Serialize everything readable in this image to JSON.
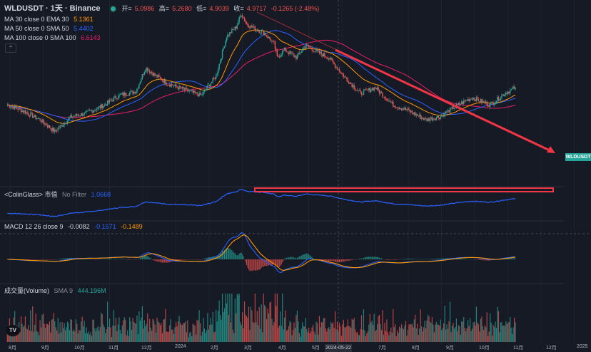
{
  "header": {
    "symbol": "WLDUSDT · 1天 · Binance",
    "open_label": "开=",
    "open": "5.0986",
    "high_label": "高=",
    "high": "5.2680",
    "low_label": "低=",
    "low": "4.9039",
    "close_label": "收=",
    "close": "4.9717",
    "change": "-0.1265 (-2.48%)"
  },
  "indicators": {
    "ma30": {
      "label": "MA 30 close 0 EMA 30",
      "value": "5.1361",
      "color": "#ff9800"
    },
    "ma50": {
      "label": "MA 50 close 0 SMA 50",
      "value": "5.4402",
      "color": "#2962ff"
    },
    "ma100": {
      "label": "MA 100 close 0 SMA 100",
      "value": "6.6143",
      "color": "#e91e63"
    },
    "coinglass": {
      "label": "<ColinGlass> 市值",
      "filter": "No Filter",
      "value": "1.0668",
      "color": "#2962ff"
    },
    "macd": {
      "label": "MACD 12 26 close 9",
      "v1": "-0.0082",
      "v2": "-0.1571",
      "v3": "-0.1489",
      "c1": "#d1d4dc",
      "c2": "#2962ff",
      "c3": "#ff9800"
    },
    "volume": {
      "label": "成交量(Volume)",
      "sma": "SMA 9",
      "value": "444.196M",
      "color": "#26a69a"
    }
  },
  "colors": {
    "up": "#26a69a",
    "down": "#ef5350",
    "arrow": "#f23645",
    "highlight_box": "#f23645",
    "grid": "#1e222d"
  },
  "last_price_tag": "WLDUSDT",
  "crosshair_date": "2024-05-22",
  "x_axis_labels": [
    "8月",
    "9月",
    "10月",
    "11月",
    "12月",
    "2024",
    "2月",
    "3月",
    "4月",
    "5月",
    "2024-05-22",
    "7月",
    "8月",
    "9月",
    "10月",
    "11月",
    "12月",
    "2025"
  ],
  "tv_logo": "TV",
  "chart_data": {
    "type": "candlestick",
    "series_price": {
      "name": "WLDUSDT",
      "points": [
        [
          "2023-08-01",
          2.0
        ],
        [
          "2023-08-15",
          1.8
        ],
        [
          "2023-09-01",
          1.5
        ],
        [
          "2023-09-15",
          1.2
        ],
        [
          "2023-10-01",
          1.6
        ],
        [
          "2023-10-15",
          1.7
        ],
        [
          "2023-11-01",
          2.0
        ],
        [
          "2023-11-15",
          2.4
        ],
        [
          "2023-12-01",
          2.6
        ],
        [
          "2023-12-10",
          4.1
        ],
        [
          "2023-12-20",
          3.5
        ],
        [
          "2024-01-01",
          3.0
        ],
        [
          "2024-01-15",
          2.7
        ],
        [
          "2024-02-01",
          2.4
        ],
        [
          "2024-02-15",
          3.5
        ],
        [
          "2024-02-25",
          7.5
        ],
        [
          "2024-03-05",
          9.0
        ],
        [
          "2024-03-10",
          11.7
        ],
        [
          "2024-03-15",
          9.5
        ],
        [
          "2024-03-25",
          8.5
        ],
        [
          "2024-04-01",
          8.0
        ],
        [
          "2024-04-10",
          6.5
        ],
        [
          "2024-04-13",
          5.0
        ],
        [
          "2024-04-20",
          5.8
        ],
        [
          "2024-05-01",
          5.0
        ],
        [
          "2024-05-10",
          6.3
        ],
        [
          "2024-05-22",
          5.5
        ],
        [
          "2024-06-01",
          5.0
        ],
        [
          "2024-06-15",
          3.5
        ],
        [
          "2024-07-01",
          2.5
        ],
        [
          "2024-07-15",
          2.8
        ],
        [
          "2024-08-01",
          2.0
        ],
        [
          "2024-08-15",
          1.8
        ],
        [
          "2024-09-01",
          1.5
        ],
        [
          "2024-09-15",
          1.6
        ],
        [
          "2024-10-01",
          2.0
        ],
        [
          "2024-10-15",
          2.3
        ],
        [
          "2024-11-01",
          2.0
        ],
        [
          "2024-11-15",
          2.5
        ],
        [
          "2024-11-25",
          2.8
        ]
      ]
    },
    "x_range": [
      "2023-07-25",
      "2025-01-10"
    ],
    "y_range": [
      0.5,
      12.5
    ]
  }
}
